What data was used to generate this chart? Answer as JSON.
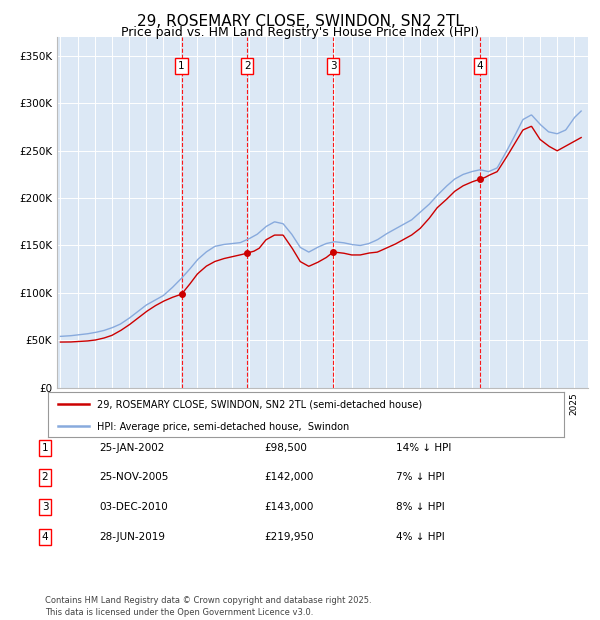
{
  "title": "29, ROSEMARY CLOSE, SWINDON, SN2 2TL",
  "subtitle": "Price paid vs. HM Land Registry's House Price Index (HPI)",
  "title_fontsize": 11,
  "subtitle_fontsize": 9,
  "background_color": "#ffffff",
  "plot_bg_color": "#dce8f5",
  "grid_color": "#ffffff",
  "red_line_color": "#cc0000",
  "blue_line_color": "#88aadd",
  "ylabel_ticks": [
    "£0",
    "£50K",
    "£100K",
    "£150K",
    "£200K",
    "£250K",
    "£300K",
    "£350K"
  ],
  "ylabel_values": [
    0,
    50000,
    100000,
    150000,
    200000,
    250000,
    300000,
    350000
  ],
  "ylim": [
    0,
    370000
  ],
  "xlim_start": 1994.8,
  "xlim_end": 2025.8,
  "purchase_dates": [
    2002.07,
    2005.9,
    2010.92,
    2019.49
  ],
  "purchase_prices": [
    98500,
    142000,
    143000,
    219950
  ],
  "purchase_labels": [
    "1",
    "2",
    "3",
    "4"
  ],
  "legend_entries": [
    "29, ROSEMARY CLOSE, SWINDON, SN2 2TL (semi-detached house)",
    "HPI: Average price, semi-detached house,  Swindon"
  ],
  "table_rows": [
    [
      "1",
      "25-JAN-2002",
      "£98,500",
      "14% ↓ HPI"
    ],
    [
      "2",
      "25-NOV-2005",
      "£142,000",
      "7% ↓ HPI"
    ],
    [
      "3",
      "03-DEC-2010",
      "£143,000",
      "8% ↓ HPI"
    ],
    [
      "4",
      "28-JUN-2019",
      "£219,950",
      "4% ↓ HPI"
    ]
  ],
  "footnote": "Contains HM Land Registry data © Crown copyright and database right 2025.\nThis data is licensed under the Open Government Licence v3.0."
}
